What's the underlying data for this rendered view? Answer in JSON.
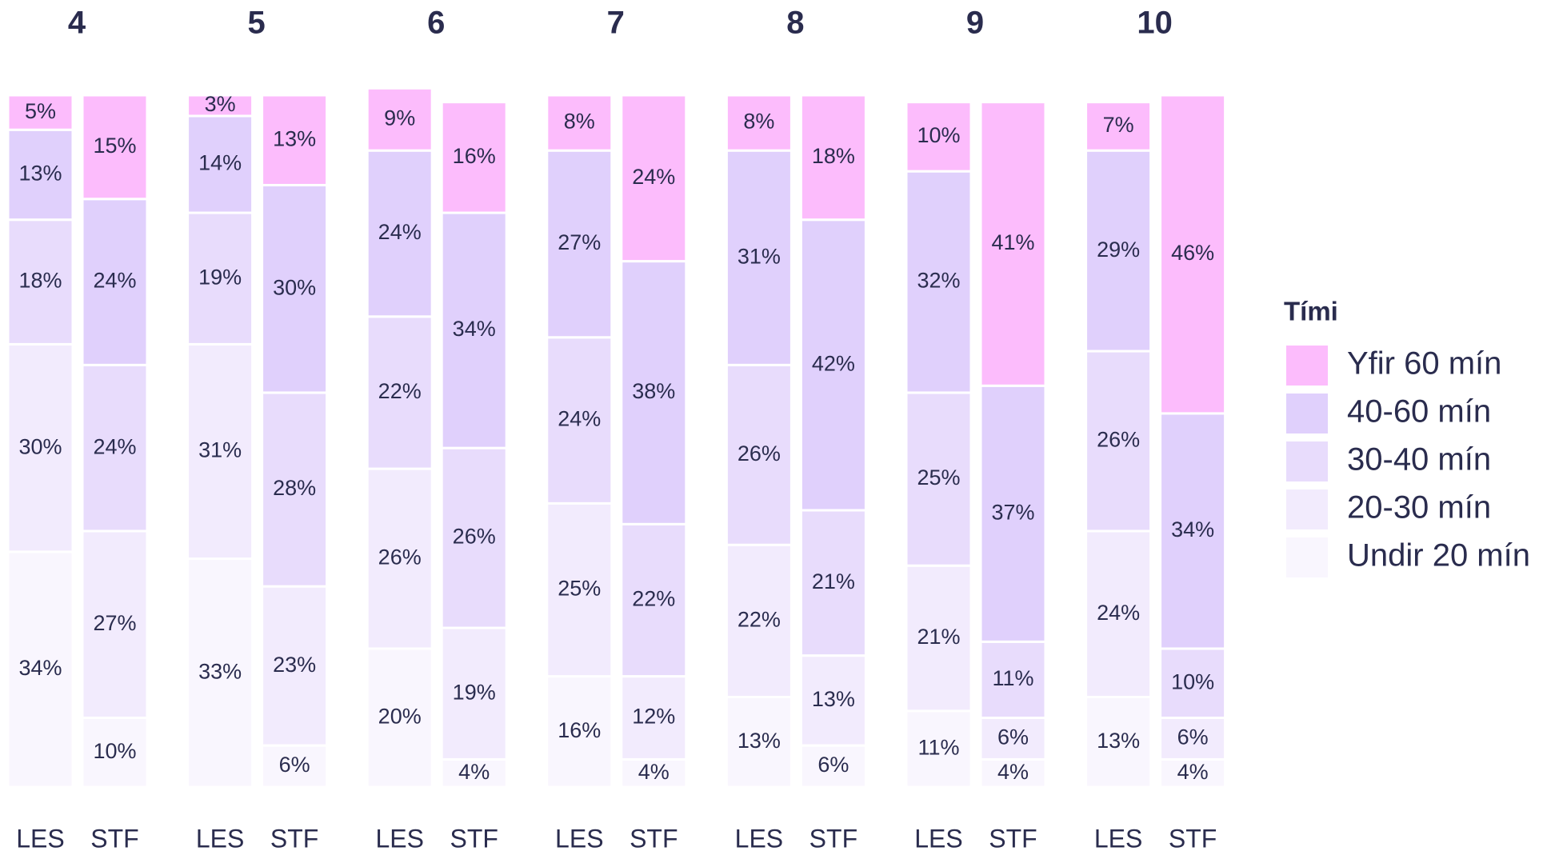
{
  "chart_data": [
    {
      "type": "bar",
      "stacked": true,
      "title": "4",
      "legend_title": "Tími",
      "categories": [
        "LES",
        "STF"
      ],
      "ylim": [
        0,
        100
      ],
      "series": [
        {
          "name": "Undir 20 mín",
          "color": "#f9f6fe",
          "values": [
            34,
            10
          ],
          "value_labels": [
            "34%",
            "10%"
          ]
        },
        {
          "name": "20-30 mín",
          "color": "#f2ebfd",
          "values": [
            30,
            27
          ],
          "value_labels": [
            "30%",
            "27%"
          ]
        },
        {
          "name": "30-40 mín",
          "color": "#e8dcfc",
          "values": [
            18,
            24
          ],
          "value_labels": [
            "18%",
            "24%"
          ]
        },
        {
          "name": "40-60 mín",
          "color": "#e0d0fc",
          "values": [
            13,
            24
          ],
          "value_labels": [
            "13%",
            "24%"
          ]
        },
        {
          "name": "Yfir 60 mín",
          "color": "#fcbcfc",
          "values": [
            5,
            15
          ],
          "value_labels": [
            "5%",
            "15%"
          ]
        }
      ]
    },
    {
      "type": "bar",
      "stacked": true,
      "title": "5",
      "categories": [
        "LES",
        "STF"
      ],
      "ylim": [
        0,
        100
      ],
      "series": [
        {
          "name": "Undir 20 mín",
          "color": "#f9f6fe",
          "values": [
            33,
            6
          ],
          "value_labels": [
            "33%",
            "6%"
          ]
        },
        {
          "name": "20-30 mín",
          "color": "#f2ebfd",
          "values": [
            31,
            23
          ],
          "value_labels": [
            "31%",
            "23%"
          ]
        },
        {
          "name": "30-40 mín",
          "color": "#e8dcfc",
          "values": [
            19,
            28
          ],
          "value_labels": [
            "19%",
            "28%"
          ]
        },
        {
          "name": "40-60 mín",
          "color": "#e0d0fc",
          "values": [
            14,
            30
          ],
          "value_labels": [
            "14%",
            "30%"
          ]
        },
        {
          "name": "Yfir 60 mín",
          "color": "#fcbcfc",
          "values": [
            3,
            13
          ],
          "value_labels": [
            "3%",
            "13%"
          ]
        }
      ]
    },
    {
      "type": "bar",
      "stacked": true,
      "title": "6",
      "categories": [
        "LES",
        "STF"
      ],
      "ylim": [
        0,
        100
      ],
      "series": [
        {
          "name": "Undir 20 mín",
          "color": "#f9f6fe",
          "values": [
            20,
            4
          ],
          "value_labels": [
            "20%",
            "4%"
          ]
        },
        {
          "name": "20-30 mín",
          "color": "#f2ebfd",
          "values": [
            26,
            19
          ],
          "value_labels": [
            "26%",
            "19%"
          ]
        },
        {
          "name": "30-40 mín",
          "color": "#e8dcfc",
          "values": [
            22,
            26
          ],
          "value_labels": [
            "22%",
            "26%"
          ]
        },
        {
          "name": "40-60 mín",
          "color": "#e0d0fc",
          "values": [
            24,
            34
          ],
          "value_labels": [
            "24%",
            "34%"
          ]
        },
        {
          "name": "Yfir 60 mín",
          "color": "#fcbcfc",
          "values": [
            9,
            16
          ],
          "value_labels": [
            "9%",
            "16%"
          ]
        }
      ]
    },
    {
      "type": "bar",
      "stacked": true,
      "title": "7",
      "categories": [
        "LES",
        "STF"
      ],
      "ylim": [
        0,
        100
      ],
      "series": [
        {
          "name": "Undir 20 mín",
          "color": "#f9f6fe",
          "values": [
            16,
            4
          ],
          "value_labels": [
            "16%",
            "4%"
          ]
        },
        {
          "name": "20-30 mín",
          "color": "#f2ebfd",
          "values": [
            25,
            12
          ],
          "value_labels": [
            "25%",
            "12%"
          ]
        },
        {
          "name": "30-40 mín",
          "color": "#e8dcfc",
          "values": [
            24,
            22
          ],
          "value_labels": [
            "24%",
            "22%"
          ]
        },
        {
          "name": "40-60 mín",
          "color": "#e0d0fc",
          "values": [
            27,
            38
          ],
          "value_labels": [
            "27%",
            "38%"
          ]
        },
        {
          "name": "Yfir 60 mín",
          "color": "#fcbcfc",
          "values": [
            8,
            24
          ],
          "value_labels": [
            "8%",
            "24%"
          ]
        }
      ]
    },
    {
      "type": "bar",
      "stacked": true,
      "title": "8",
      "categories": [
        "LES",
        "STF"
      ],
      "ylim": [
        0,
        100
      ],
      "series": [
        {
          "name": "Undir 20 mín",
          "color": "#f9f6fe",
          "values": [
            13,
            6
          ],
          "value_labels": [
            "13%",
            "6%"
          ]
        },
        {
          "name": "20-30 mín",
          "color": "#f2ebfd",
          "values": [
            22,
            13
          ],
          "value_labels": [
            "22%",
            "13%"
          ]
        },
        {
          "name": "30-40 mín",
          "color": "#e8dcfc",
          "values": [
            26,
            21
          ],
          "value_labels": [
            "26%",
            "21%"
          ]
        },
        {
          "name": "40-60 mín",
          "color": "#e0d0fc",
          "values": [
            31,
            42
          ],
          "value_labels": [
            "31%",
            "42%"
          ]
        },
        {
          "name": "Yfir 60 mín",
          "color": "#fcbcfc",
          "values": [
            8,
            18
          ],
          "value_labels": [
            "8%",
            "18%"
          ]
        }
      ]
    },
    {
      "type": "bar",
      "stacked": true,
      "title": "9",
      "categories": [
        "LES",
        "STF"
      ],
      "ylim": [
        0,
        100
      ],
      "series": [
        {
          "name": "Undir 20 mín",
          "color": "#f9f6fe",
          "values": [
            11,
            4
          ],
          "value_labels": [
            "11%",
            "4%"
          ]
        },
        {
          "name": "20-30 mín",
          "color": "#f2ebfd",
          "values": [
            21,
            6
          ],
          "value_labels": [
            "21%",
            "6%"
          ]
        },
        {
          "name": "30-40 mín",
          "color": "#e8dcfc",
          "values": [
            25,
            11
          ],
          "value_labels": [
            "25%",
            "11%"
          ]
        },
        {
          "name": "40-60 mín",
          "color": "#e0d0fc",
          "values": [
            32,
            37
          ],
          "value_labels": [
            "32%",
            "37%"
          ]
        },
        {
          "name": "Yfir 60 mín",
          "color": "#fcbcfc",
          "values": [
            10,
            41
          ],
          "value_labels": [
            "10%",
            "41%"
          ]
        }
      ]
    },
    {
      "type": "bar",
      "stacked": true,
      "title": "10",
      "categories": [
        "LES",
        "STF"
      ],
      "ylim": [
        0,
        100
      ],
      "series": [
        {
          "name": "Undir 20 mín",
          "color": "#f9f6fe",
          "values": [
            13,
            4
          ],
          "value_labels": [
            "13%",
            "4%"
          ]
        },
        {
          "name": "20-30 mín",
          "color": "#f2ebfd",
          "values": [
            24,
            6
          ],
          "value_labels": [
            "24%",
            "6%"
          ]
        },
        {
          "name": "30-40 mín",
          "color": "#e8dcfc",
          "values": [
            26,
            10
          ],
          "value_labels": [
            "26%",
            "10%"
          ]
        },
        {
          "name": "40-60 mín",
          "color": "#e0d0fc",
          "values": [
            29,
            34
          ],
          "value_labels": [
            "29%",
            "34%"
          ]
        },
        {
          "name": "Yfir 60 mín",
          "color": "#fcbcfc",
          "values": [
            7,
            46
          ],
          "value_labels": [
            "7%",
            "46%"
          ]
        }
      ]
    }
  ]
}
